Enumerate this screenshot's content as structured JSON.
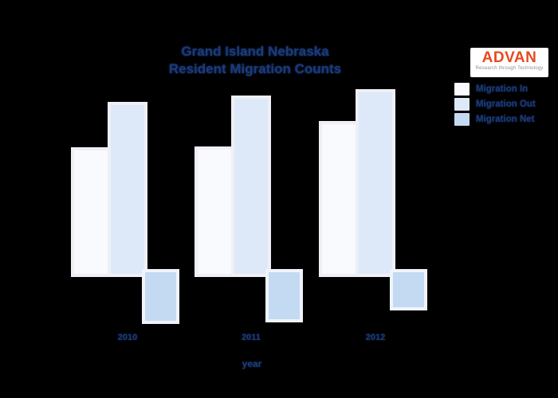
{
  "page": {
    "background": "#000000",
    "title_line1": "Grand Island Nebraska",
    "title_line2": "Resident Migration Counts",
    "title_color": "#1c3a78"
  },
  "logo": {
    "name": "ADVAN",
    "tagline": "Research through Technology",
    "brand_color": "#e8481e",
    "bg_color": "#ffffff"
  },
  "legend": {
    "position": "upper-right",
    "items": [
      {
        "label": "Migration In",
        "color": "#f8fafe",
        "edge": "#efeff5"
      },
      {
        "label": "Migration Out",
        "color": "#dde9f8",
        "edge": "#eef0f6"
      },
      {
        "label": "Migration Net",
        "color": "#c4daf3",
        "edge": "#f0f4fa"
      }
    ]
  },
  "x_axis": {
    "label": "year",
    "tick_labels": [
      "2010",
      "2011",
      "2012"
    ]
  },
  "chart_data": {
    "type": "bar",
    "title": "Grand Island Nebraska Resident Migration Counts",
    "categories": [
      "2010",
      "2011",
      "2012"
    ],
    "series": [
      {
        "name": "Migration In",
        "values": [
          163,
          164,
          196
        ]
      },
      {
        "name": "Migration Out",
        "values": [
          220,
          228,
          236
        ]
      },
      {
        "name": "Migration Net",
        "values": [
          -59,
          -57,
          -42
        ]
      }
    ],
    "xlabel": "year",
    "ylabel": "",
    "y_axis_labels_visible": false,
    "value_units": "relative-pixel estimate (no y-axis scale visible)",
    "baseline": 0,
    "grid": false,
    "legend_position": "upper-right",
    "note": "Migration Net bars extend below the zero baseline (negative values)"
  }
}
